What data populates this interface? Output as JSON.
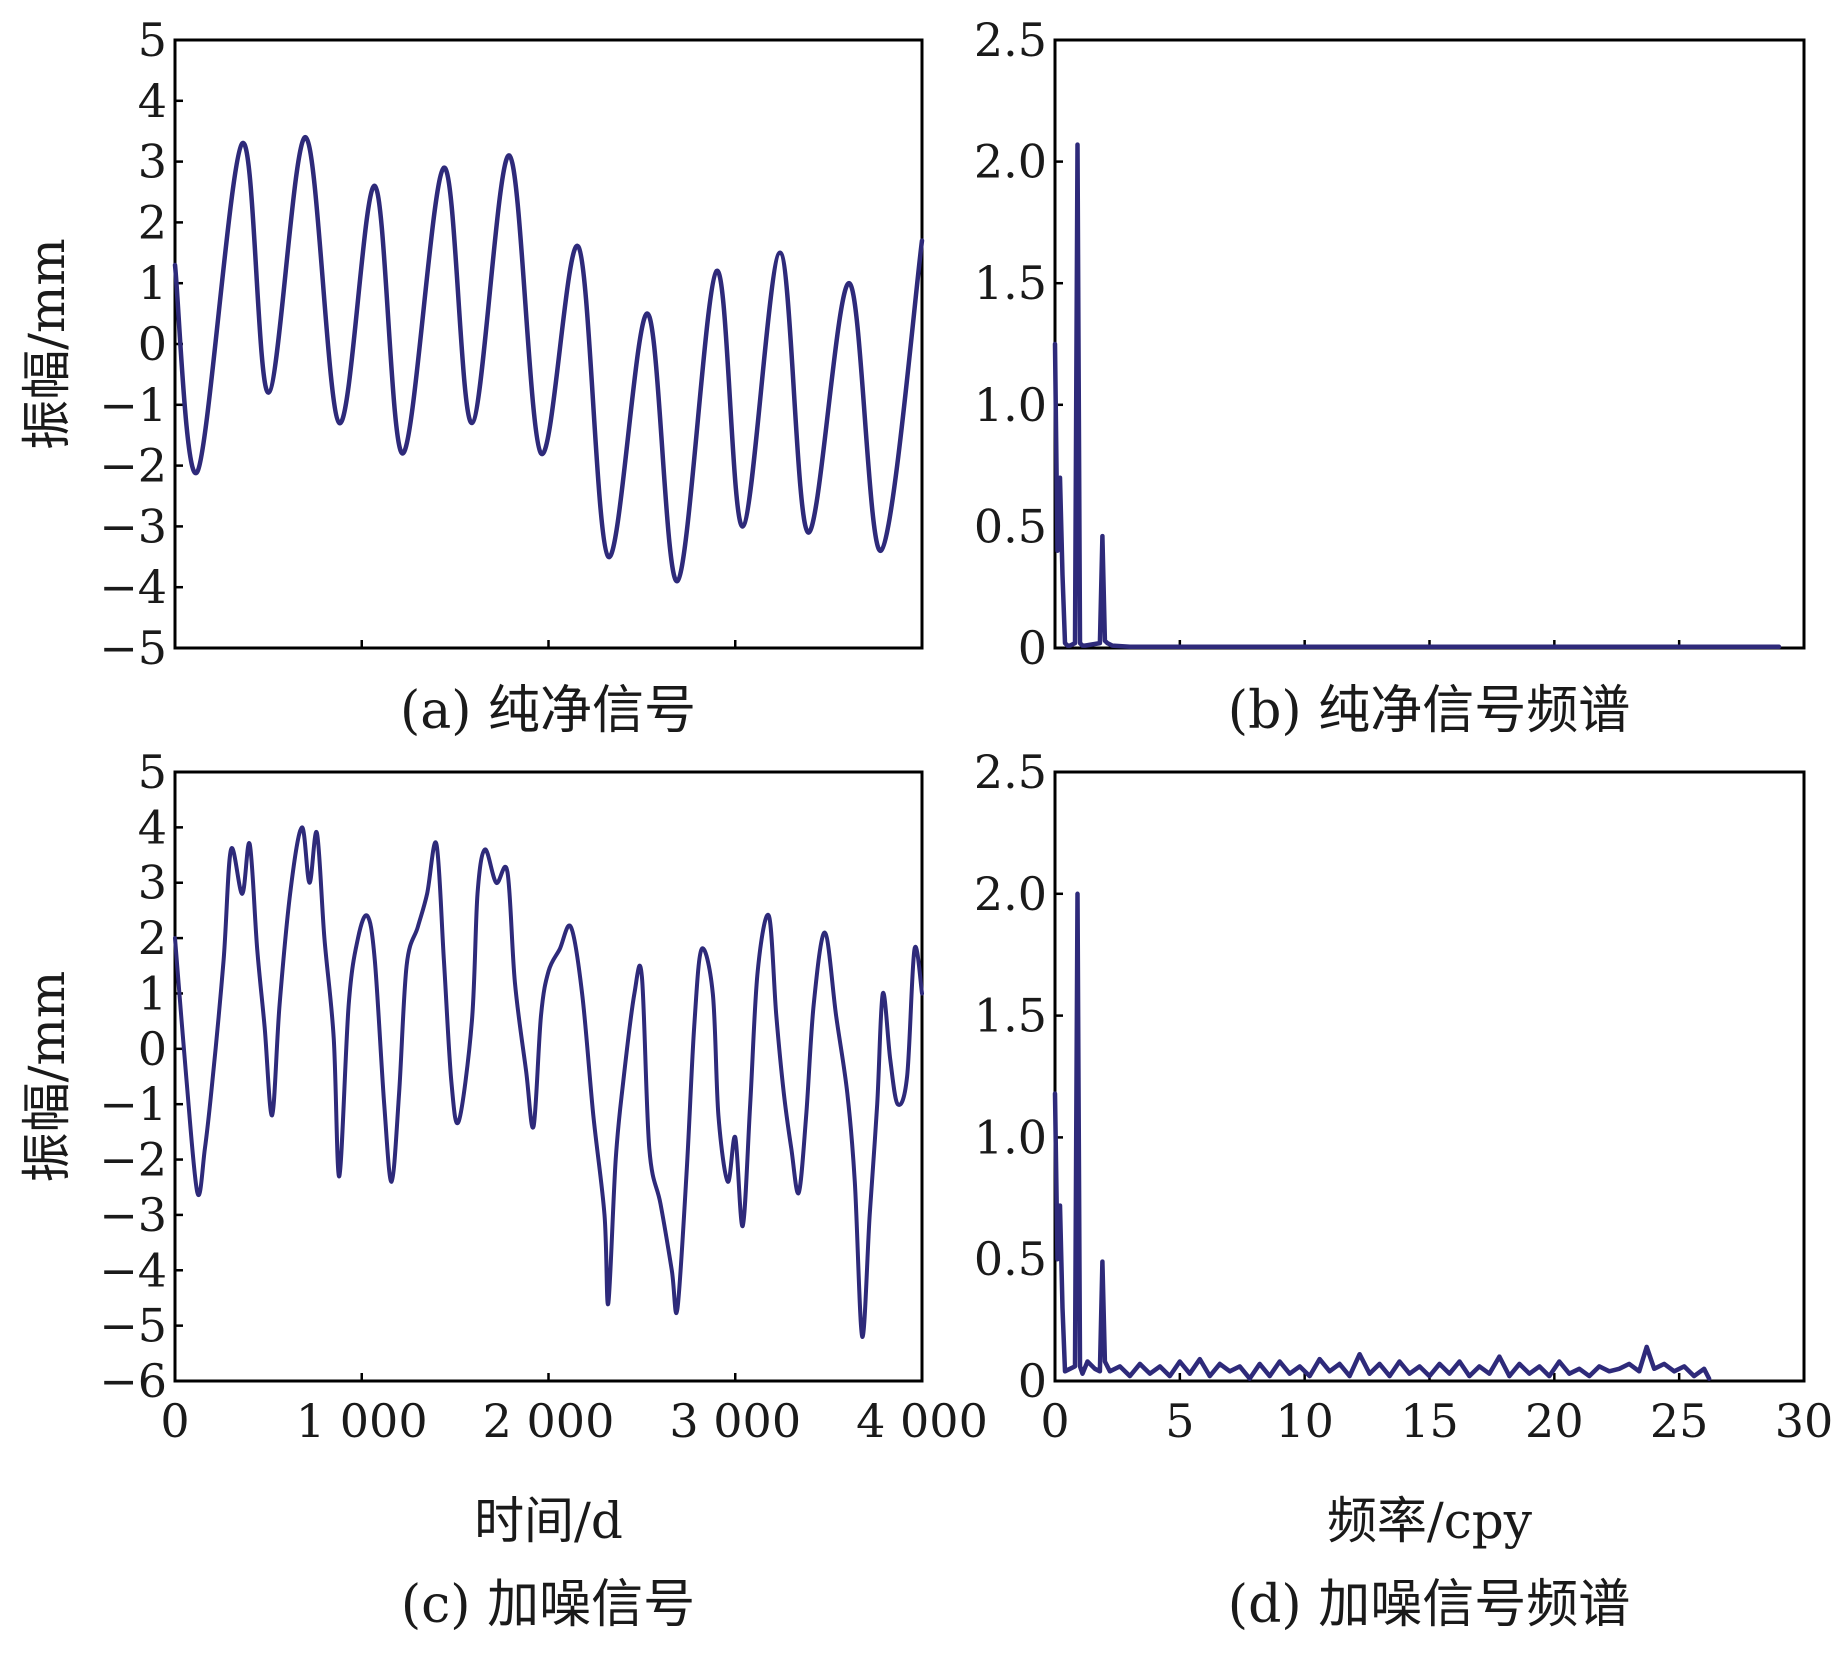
{
  "colors": {
    "series": "#2e2a7a",
    "axis": "#000000"
  },
  "chart_data": [
    {
      "id": "a",
      "type": "line",
      "caption": "(a) 纯净信号",
      "ylabel": "振幅/mm",
      "xlabel": "",
      "xlim": [
        0,
        4000
      ],
      "ylim": [
        -5,
        5
      ],
      "yticks": [
        "5",
        "4",
        "3",
        "2",
        "1",
        "0",
        "−1",
        "−2",
        "−3",
        "−4",
        "−5"
      ],
      "ytick_values": [
        5,
        4,
        3,
        2,
        1,
        0,
        -1,
        -2,
        -3,
        -4,
        -5
      ],
      "xticks": [],
      "xtick_values": [
        0,
        1000,
        2000,
        3000,
        4000
      ],
      "series": [
        {
          "name": "纯净信号",
          "x": [
            0,
            120,
            360,
            500,
            700,
            880,
            1070,
            1220,
            1440,
            1590,
            1790,
            1960,
            2160,
            2320,
            2530,
            2690,
            2900,
            3040,
            3240,
            3390,
            3610,
            3780,
            4000
          ],
          "y": [
            1.3,
            -2.1,
            3.3,
            -0.8,
            3.4,
            -1.3,
            2.6,
            -1.8,
            2.9,
            -1.3,
            3.1,
            -1.8,
            1.6,
            -3.5,
            0.5,
            -3.9,
            1.2,
            -3.0,
            1.5,
            -3.1,
            1.0,
            -3.4,
            1.7
          ]
        }
      ]
    },
    {
      "id": "b",
      "type": "line",
      "caption": "(b) 纯净信号频谱",
      "ylabel": "",
      "xlabel": "",
      "xlim": [
        0,
        30
      ],
      "ylim": [
        0,
        2.5
      ],
      "yticks": [
        "2.5",
        "2.0",
        "1.5",
        "1.0",
        "0.5",
        "0"
      ],
      "ytick_values": [
        2.5,
        2.0,
        1.5,
        1.0,
        0.5,
        0
      ],
      "xticks": [],
      "xtick_values": [
        0,
        5,
        10,
        15,
        20,
        25,
        30
      ],
      "series": [
        {
          "name": "纯净信号频谱",
          "x": [
            0,
            0.1,
            0.2,
            0.3,
            0.4,
            0.5,
            0.6,
            0.8,
            0.9,
            1.0,
            1.1,
            1.2,
            1.8,
            1.9,
            2.0,
            2.1,
            2.3,
            3.0,
            29
          ],
          "y": [
            1.25,
            0.4,
            0.7,
            0.3,
            0.02,
            0.01,
            0.01,
            0.02,
            2.07,
            0.02,
            0.01,
            0.01,
            0.02,
            0.46,
            0.03,
            0.02,
            0.01,
            0.005,
            0.005
          ]
        }
      ]
    },
    {
      "id": "c",
      "type": "line",
      "caption": "(c) 加噪信号",
      "ylabel": "振幅/mm",
      "xlabel": "时间/d",
      "xlim": [
        0,
        4000
      ],
      "ylim": [
        -6,
        5
      ],
      "yticks": [
        "5",
        "4",
        "3",
        "2",
        "1",
        "0",
        "−1",
        "−2",
        "−3",
        "−4",
        "−5",
        "−6"
      ],
      "ytick_values": [
        5,
        4,
        3,
        2,
        1,
        0,
        -1,
        -2,
        -3,
        -4,
        -5,
        -6
      ],
      "xticks": [
        "0",
        "1 000",
        "2 000",
        "3 000",
        "4 000"
      ],
      "xtick_values": [
        0,
        1000,
        2000,
        3000,
        4000
      ],
      "series": [
        {
          "name": "加噪信号",
          "x": [
            0,
            60,
            120,
            160,
            200,
            260,
            300,
            360,
            400,
            440,
            480,
            520,
            560,
            620,
            680,
            720,
            760,
            800,
            850,
            880,
            930,
            980,
            1030,
            1070,
            1120,
            1160,
            1200,
            1240,
            1300,
            1350,
            1400,
            1440,
            1480,
            1520,
            1590,
            1620,
            1660,
            1720,
            1780,
            1820,
            1880,
            1920,
            1960,
            2000,
            2060,
            2120,
            2180,
            2240,
            2300,
            2320,
            2360,
            2400,
            2460,
            2500,
            2540,
            2600,
            2660,
            2690,
            2740,
            2780,
            2820,
            2880,
            2910,
            2960,
            3000,
            3040,
            3080,
            3120,
            3180,
            3220,
            3260,
            3300,
            3340,
            3380,
            3420,
            3480,
            3540,
            3600,
            3640,
            3680,
            3720,
            3760,
            3790,
            3830,
            3870,
            3920,
            3960,
            4000
          ],
          "y": [
            2.0,
            -0.5,
            -2.6,
            -1.8,
            -0.6,
            1.6,
            3.6,
            2.8,
            3.7,
            1.8,
            0.4,
            -1.2,
            0.8,
            2.9,
            4.0,
            3.0,
            3.9,
            2.0,
            0.2,
            -2.3,
            0.8,
            2.0,
            2.4,
            1.6,
            -1.0,
            -2.4,
            -0.8,
            1.5,
            2.2,
            2.8,
            3.7,
            1.6,
            -0.6,
            -1.3,
            0.5,
            2.8,
            3.6,
            3.0,
            3.2,
            1.2,
            -0.4,
            -1.4,
            0.6,
            1.4,
            1.8,
            2.2,
            1.0,
            -1.2,
            -3.0,
            -4.6,
            -2.0,
            -0.6,
            1.0,
            1.3,
            -1.8,
            -2.8,
            -4.0,
            -4.7,
            -2.2,
            0.4,
            1.8,
            1.0,
            -1.2,
            -2.4,
            -1.6,
            -3.2,
            -1.0,
            1.4,
            2.4,
            0.6,
            -0.8,
            -1.8,
            -2.6,
            -1.2,
            0.8,
            2.1,
            0.6,
            -0.8,
            -2.4,
            -5.2,
            -3.0,
            -1.0,
            1.0,
            -0.2,
            -1.0,
            -0.5,
            1.8,
            1.0
          ]
        }
      ]
    },
    {
      "id": "d",
      "type": "line",
      "caption": "(d) 加噪信号频谱",
      "ylabel": "",
      "xlabel": "频率/cpy",
      "xlim": [
        0,
        30
      ],
      "ylim": [
        0,
        2.5
      ],
      "yticks": [
        "2.5",
        "2.0",
        "1.5",
        "1.0",
        "0.5",
        "0"
      ],
      "ytick_values": [
        2.5,
        2.0,
        1.5,
        1.0,
        0.5,
        0
      ],
      "xticks": [
        "0",
        "5",
        "10",
        "15",
        "20",
        "25",
        "30"
      ],
      "xtick_values": [
        0,
        5,
        10,
        15,
        20,
        25,
        30
      ],
      "series": [
        {
          "name": "加噪信号频谱",
          "x": [
            0,
            0.1,
            0.2,
            0.3,
            0.4,
            0.6,
            0.8,
            0.9,
            1.0,
            1.1,
            1.3,
            1.6,
            1.8,
            1.9,
            2.0,
            2.2,
            2.6,
            3.0,
            3.4,
            3.8,
            4.2,
            4.6,
            5.0,
            5.4,
            5.8,
            6.2,
            6.6,
            7.0,
            7.4,
            7.8,
            8.2,
            8.6,
            9.0,
            9.4,
            9.8,
            10.2,
            10.6,
            11.0,
            11.4,
            11.8,
            12.2,
            12.6,
            13.0,
            13.4,
            13.8,
            14.2,
            14.6,
            15.0,
            15.4,
            15.8,
            16.2,
            16.6,
            17.0,
            17.4,
            17.8,
            18.2,
            18.6,
            19.0,
            19.4,
            19.8,
            20.2,
            20.6,
            21.0,
            21.4,
            21.8,
            22.2,
            22.6,
            23.0,
            23.4,
            23.7,
            24.0,
            24.4,
            24.8,
            25.2,
            25.6,
            26.0,
            26.2
          ],
          "y": [
            1.18,
            0.5,
            0.72,
            0.3,
            0.04,
            0.05,
            0.06,
            2.0,
            0.06,
            0.03,
            0.08,
            0.05,
            0.04,
            0.49,
            0.08,
            0.04,
            0.06,
            0.02,
            0.07,
            0.03,
            0.06,
            0.02,
            0.08,
            0.03,
            0.09,
            0.02,
            0.07,
            0.04,
            0.06,
            0.01,
            0.07,
            0.02,
            0.08,
            0.03,
            0.06,
            0.02,
            0.09,
            0.04,
            0.07,
            0.02,
            0.11,
            0.03,
            0.07,
            0.02,
            0.08,
            0.03,
            0.06,
            0.02,
            0.07,
            0.03,
            0.08,
            0.02,
            0.06,
            0.03,
            0.1,
            0.02,
            0.07,
            0.03,
            0.06,
            0.02,
            0.08,
            0.03,
            0.05,
            0.02,
            0.06,
            0.04,
            0.05,
            0.07,
            0.04,
            0.14,
            0.05,
            0.07,
            0.04,
            0.06,
            0.02,
            0.05,
            0.01
          ]
        }
      ]
    }
  ]
}
